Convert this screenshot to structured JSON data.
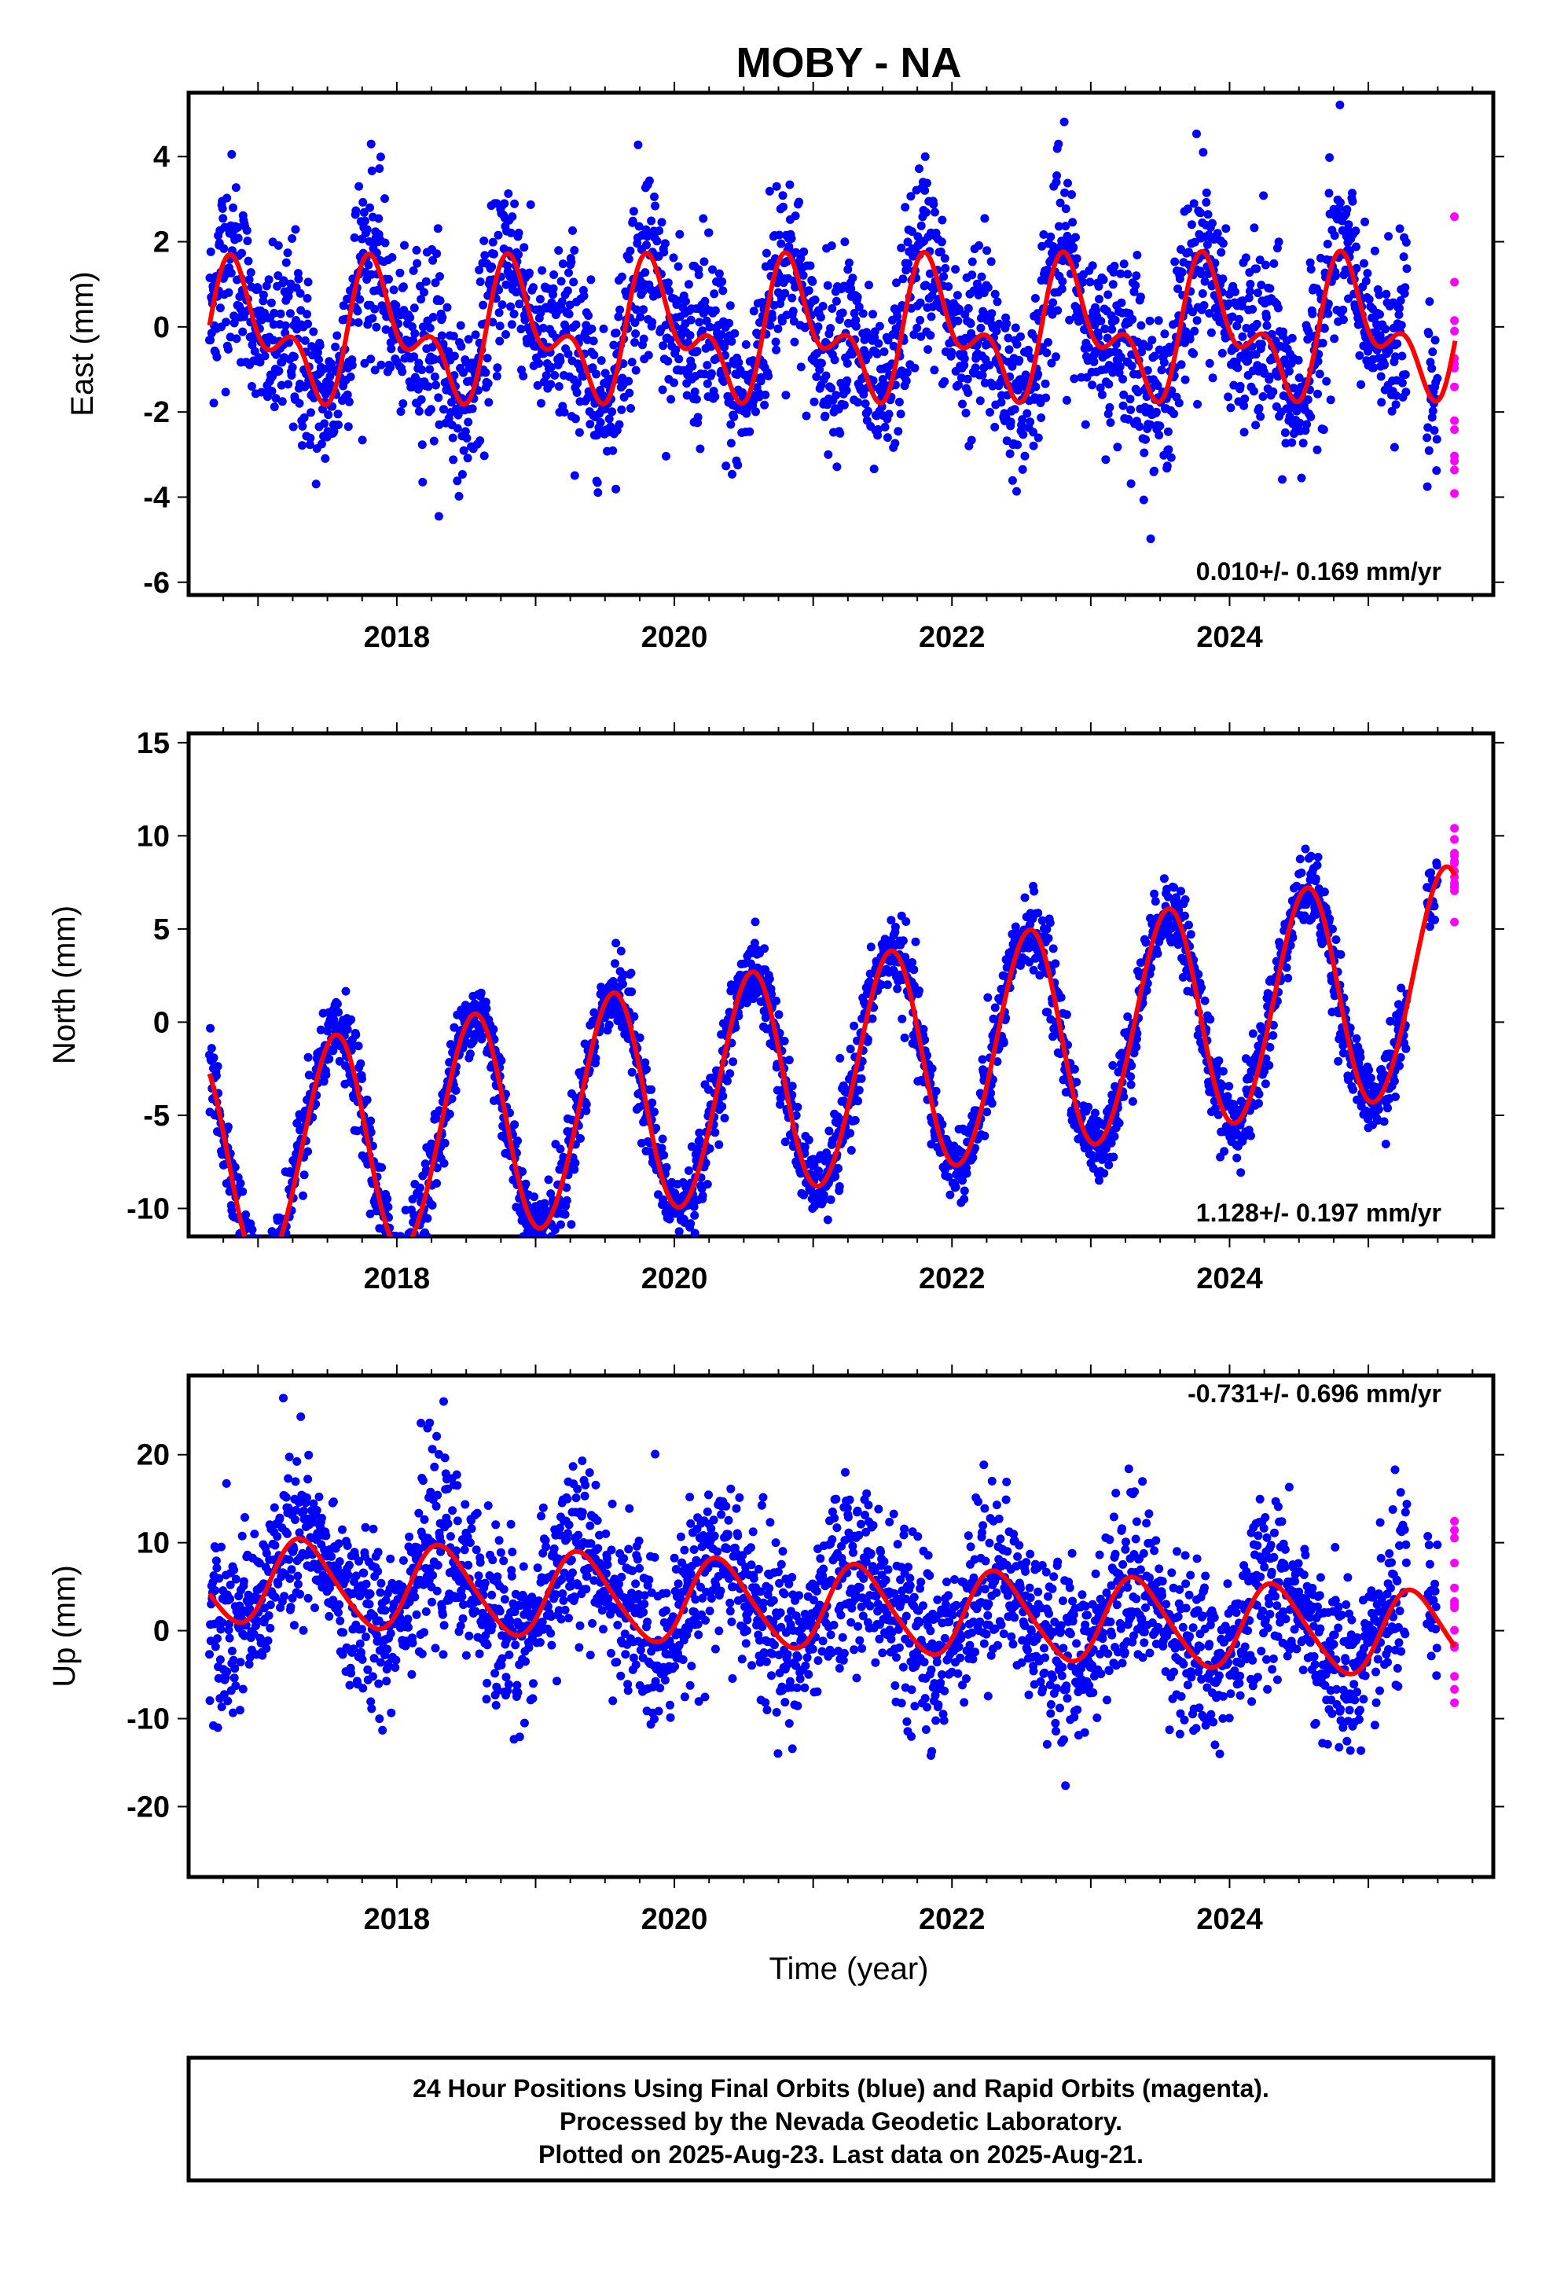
{
  "chart_data": [
    {
      "type": "scatter",
      "title": "MOBY - NA",
      "ylabel": "East (mm)",
      "xlabel": "",
      "xlim": [
        2016.5,
        2025.9
      ],
      "ylim": [
        -6.3,
        5.5
      ],
      "x_ticks": [
        "2018",
        "2020",
        "2022",
        "2024"
      ],
      "y_ticks": [
        "4",
        "2",
        "0",
        "-2",
        "-4",
        "-6"
      ],
      "rate_label": "0.010+/- 0.169 mm/yr",
      "colors": {
        "final": "#0000ff",
        "rapid": "#ff00ff",
        "model": "#ff0000"
      },
      "model": {
        "amp1": 1.2,
        "phase1": 0.62,
        "amp2": 0.85,
        "phase2": 0.15,
        "offset": -0.15,
        "slope_mm_yr": 0.01
      },
      "annotations": {
        "data_start": 2016.65,
        "rapid_start": 2025.5,
        "data_end": 2025.63
      }
    },
    {
      "type": "scatter",
      "ylabel": "North (mm)",
      "xlabel": "",
      "xlim": [
        2016.5,
        2025.9
      ],
      "ylim": [
        -11.5,
        15.5
      ],
      "x_ticks": [
        "2018",
        "2020",
        "2022",
        "2024"
      ],
      "y_ticks": [
        "15",
        "10",
        "5",
        "0",
        "-5",
        "-10"
      ],
      "rate_label": "1.128+/- 0.197 mm/yr",
      "colors": {
        "final": "#0000ff",
        "rapid": "#ff00ff",
        "model": "#ff0000"
      },
      "model": {
        "amp1": 6.0,
        "phase1": 0.3,
        "amp2": 0.3,
        "phase2": 0.0,
        "offset": -3.0,
        "slope_mm_yr": 1.128
      },
      "annotations": {
        "data_start": 2016.65,
        "rapid_start": 2025.5,
        "data_end": 2025.63
      }
    },
    {
      "type": "scatter",
      "ylabel": "Up (mm)",
      "xlabel": "Time (year)",
      "xlim": [
        2016.5,
        2025.9
      ],
      "ylim": [
        -28,
        29
      ],
      "x_ticks": [
        "2018",
        "2020",
        "2022",
        "2024"
      ],
      "y_ticks": [
        "20",
        "10",
        "0",
        "-10",
        "-20"
      ],
      "rate_label": "-0.731+/- 0.696 mm/yr",
      "colors": {
        "final": "#0000ff",
        "rapid": "#ff00ff",
        "model": "#ff0000"
      },
      "model": {
        "amp1": 4.8,
        "phase1": 0.08,
        "amp2": 0.6,
        "phase2": 0.1,
        "offset": 2.7,
        "slope_mm_yr": -0.731
      },
      "annotations": {
        "data_start": 2016.65,
        "rapid_start": 2025.5,
        "data_end": 2025.63
      }
    }
  ],
  "footer": {
    "line1": "24 Hour Positions Using Final Orbits (blue) and Rapid Orbits (magenta).",
    "line2": "Processed by the Nevada Geodetic Laboratory.",
    "line3": "Plotted on 2025-Aug-23. Last data on 2025-Aug-21."
  }
}
